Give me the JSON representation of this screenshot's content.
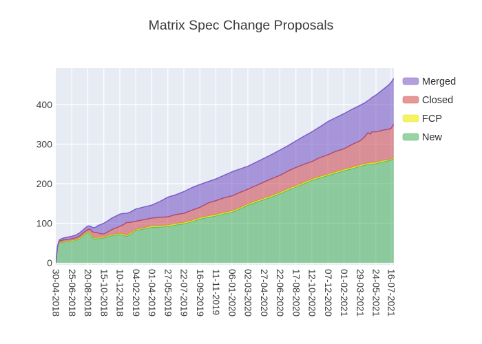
{
  "title": "Matrix Spec Change Proposals",
  "chart_data": {
    "type": "area",
    "stacked": true,
    "title": "Matrix Spec Change Proposals",
    "xlabel": "",
    "ylabel": "",
    "grid": true,
    "plot_bg": "#e7ebf4",
    "grid_color": "#ffffff",
    "text_color": "#3a3a3a",
    "legend_position": "right-top-outside",
    "legend_order_top_to_bottom": [
      "Merged",
      "Closed",
      "FCP",
      "New"
    ],
    "y_ticks": [
      0,
      100,
      200,
      300,
      400
    ],
    "ylim": [
      -6,
      492
    ],
    "x_tick_days": [
      0,
      56,
      112,
      168,
      224,
      280,
      336,
      392,
      448,
      504,
      560,
      616,
      672,
      728,
      784,
      840,
      896,
      952,
      1008,
      1064,
      1120,
      1173
    ],
    "x_tick_labels": [
      "30-04-2018",
      "25-06-2018",
      "20-08-2018",
      "15-10-2018",
      "10-12-2018",
      "04-02-2019",
      "01-04-2019",
      "27-05-2019",
      "22-07-2019",
      "16-09-2019",
      "11-11-2019",
      "06-01-2020",
      "02-03-2020",
      "27-04-2020",
      "22-06-2020",
      "17-08-2020",
      "12-10-2020",
      "07-12-2020",
      "01-02-2021",
      "29-03-2021",
      "24-05-2021",
      "16-07-2021"
    ],
    "xlim_days": [
      0,
      1182
    ],
    "x_days": [
      0,
      3,
      6,
      10,
      14,
      28,
      42,
      56,
      70,
      84,
      98,
      112,
      120,
      126,
      133,
      140,
      147,
      154,
      161,
      168,
      182,
      196,
      210,
      224,
      238,
      248,
      260,
      280,
      308,
      336,
      364,
      392,
      420,
      448,
      476,
      504,
      532,
      560,
      588,
      616,
      644,
      672,
      700,
      728,
      756,
      784,
      812,
      840,
      868,
      896,
      924,
      952,
      980,
      1008,
      1036,
      1064,
      1080,
      1092,
      1100,
      1106,
      1120,
      1134,
      1148,
      1162,
      1173,
      1182
    ],
    "series_bottom_to_top": [
      {
        "name": "New",
        "fill": "rgba(49,167,70,0.5)",
        "line": "#44af60",
        "legend_swatch": "#98d3a2",
        "values": [
          0,
          18,
          38,
          47,
          51,
          53,
          54,
          56,
          57,
          62,
          70,
          77,
          74,
          66,
          61,
          61,
          62,
          62,
          62,
          63,
          66,
          69,
          71,
          72,
          70,
          67,
          72,
          82,
          86,
          90,
          91,
          92,
          96,
          99,
          104,
          111,
          115,
          119,
          124,
          128,
          136,
          146,
          153,
          160,
          167,
          175,
          184,
          192,
          200,
          209,
          215,
          221,
          227,
          233,
          238,
          244,
          247,
          249,
          250,
          250,
          251,
          254,
          256,
          258,
          260,
          263
        ]
      },
      {
        "name": "FCP",
        "fill": "rgba(240,238,60,0.85)",
        "line": "#e0dd1f",
        "legend_swatch": "#f6f45e",
        "values": [
          0,
          0,
          0,
          1,
          1,
          1,
          1,
          1,
          1,
          1,
          1,
          1,
          2,
          2,
          2,
          2,
          2,
          2,
          2,
          2,
          2,
          2,
          2,
          2,
          3,
          2,
          3,
          2,
          2,
          3,
          3,
          3,
          3,
          3,
          3,
          3,
          3,
          3,
          3,
          3,
          3,
          3,
          3,
          3,
          3,
          3,
          3,
          3,
          3,
          3,
          3,
          3,
          3,
          3,
          3,
          3,
          3,
          3,
          3,
          3,
          3,
          3,
          3,
          2,
          2,
          2
        ]
      },
      {
        "name": "Closed",
        "fill": "rgba(203,51,60,0.5)",
        "line": "#c94f58",
        "legend_swatch": "#e59995",
        "values": [
          0,
          1,
          2,
          2,
          3,
          4,
          4,
          4,
          5,
          5,
          6,
          6,
          9,
          12,
          14,
          14,
          12,
          10,
          9,
          8,
          10,
          13,
          15,
          18,
          24,
          33,
          27,
          21,
          21,
          20,
          21,
          21,
          23,
          23,
          26,
          26,
          33,
          35,
          37,
          38,
          39,
          37,
          39,
          41,
          43,
          43,
          45,
          46,
          46,
          44,
          48,
          49,
          52,
          52,
          58,
          61,
          68,
          77,
          72,
          78,
          77,
          76,
          77,
          77,
          78,
          85
        ]
      },
      {
        "name": "Merged",
        "fill": "rgba(103,63,190,0.5)",
        "line": "#7a5dc9",
        "legend_swatch": "#b39fde",
        "values": [
          0,
          1,
          2,
          3,
          4,
          5,
          6,
          6,
          7,
          8,
          8,
          9,
          8,
          10,
          12,
          13,
          18,
          22,
          25,
          27,
          28,
          29,
          30,
          31,
          28,
          23,
          26,
          31,
          32,
          33,
          40,
          50,
          50,
          55,
          57,
          58,
          54,
          55,
          57,
          61,
          59,
          58,
          59,
          60,
          61,
          64,
          64,
          67,
          71,
          75,
          78,
          84,
          85,
          89,
          89,
          90,
          86,
          81,
          89,
          87,
          93,
          99,
          104,
          111,
          116,
          116
        ]
      }
    ]
  }
}
